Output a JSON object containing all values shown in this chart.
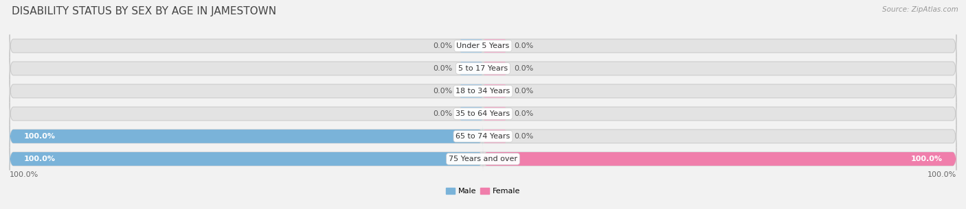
{
  "title": "DISABILITY STATUS BY SEX BY AGE IN JAMESTOWN",
  "source": "Source: ZipAtlas.com",
  "categories": [
    "Under 5 Years",
    "5 to 17 Years",
    "18 to 34 Years",
    "35 to 64 Years",
    "65 to 74 Years",
    "75 Years and over"
  ],
  "male_values": [
    0.0,
    0.0,
    0.0,
    0.0,
    100.0,
    100.0
  ],
  "female_values": [
    0.0,
    0.0,
    0.0,
    0.0,
    0.0,
    100.0
  ],
  "male_color": "#7ab3d9",
  "female_color": "#f07eab",
  "male_stub_color": "#a8cce8",
  "female_stub_color": "#f5b0cc",
  "label_color_dark": "#555555",
  "label_color_light": "#ffffff",
  "bg_color": "#f2f2f2",
  "bar_bg_color": "#e3e3e3",
  "bar_bg_border": "#d0d0d0",
  "stub_size": 5.0,
  "title_fontsize": 11,
  "label_fontsize": 8,
  "tick_fontsize": 8,
  "category_fontsize": 8
}
